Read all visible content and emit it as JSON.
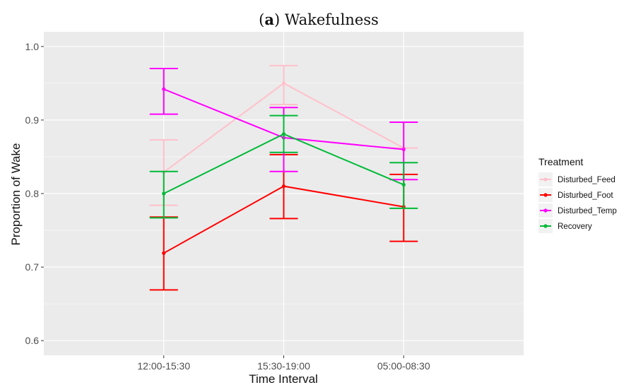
{
  "chart_data": {
    "type": "line",
    "title_prefix": "(",
    "title_letter": "a",
    "title_suffix": ") Wakefulness",
    "xlabel": "Time Interval",
    "ylabel": "Proportion of Wake",
    "categories": [
      "12:00-15:30",
      "15:30-19:00",
      "05:00-08:30"
    ],
    "ylim": [
      0.58,
      1.02
    ],
    "yticks": [
      0.6,
      0.7,
      0.8,
      0.9,
      1.0
    ],
    "ytick_labels": [
      "0.6",
      "0.7",
      "0.8",
      "0.9",
      "1.0"
    ],
    "grid": true,
    "legend": {
      "title": "Treatment",
      "placement": "right"
    },
    "series": [
      {
        "name": "Disturbed_Feed",
        "color": "#ffc0cb",
        "values": [
          0.829,
          0.95,
          0.862
        ],
        "err_low": [
          0.784,
          0.921,
          0.862
        ],
        "err_high": [
          0.873,
          0.974,
          0.862
        ]
      },
      {
        "name": "Disturbed_Foot",
        "color": "#ff0000",
        "values": [
          0.719,
          0.81,
          0.782
        ],
        "err_low": [
          0.669,
          0.766,
          0.735
        ],
        "err_high": [
          0.768,
          0.853,
          0.826
        ]
      },
      {
        "name": "Disturbed_Temp",
        "color": "#ff00ff",
        "values": [
          0.942,
          0.876,
          0.86
        ],
        "err_low": [
          0.908,
          0.83,
          0.819
        ],
        "err_high": [
          0.97,
          0.917,
          0.897
        ]
      },
      {
        "name": "Recovery",
        "color": "#00ba38",
        "values": [
          0.8,
          0.881,
          0.812
        ],
        "err_low": [
          0.767,
          0.856,
          0.78
        ],
        "err_high": [
          0.83,
          0.906,
          0.842
        ]
      }
    ]
  }
}
